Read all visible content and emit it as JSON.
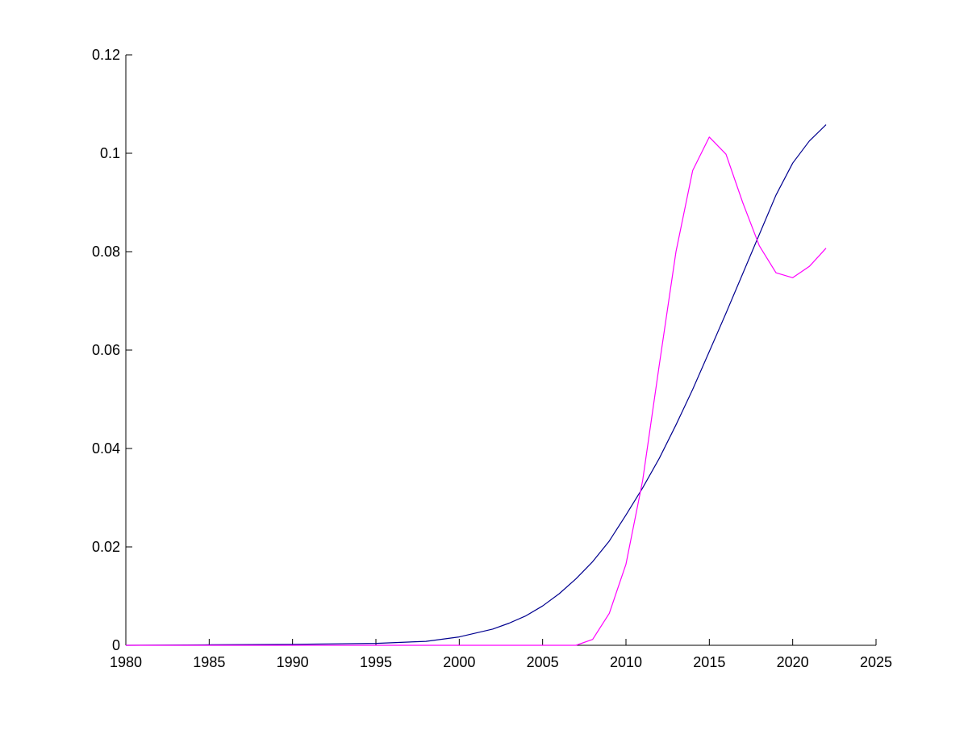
{
  "chart_data": {
    "type": "line",
    "title": "",
    "xlabel": "",
    "ylabel": "",
    "xlim": [
      1980,
      2025
    ],
    "ylim": [
      0,
      0.12
    ],
    "xticks": [
      1980,
      1985,
      1990,
      1995,
      2000,
      2005,
      2010,
      2015,
      2020,
      2025
    ],
    "xtick_labels": [
      "1980",
      "1985",
      "1990",
      "1995",
      "2000",
      "2005",
      "2010",
      "2015",
      "2020",
      "2025"
    ],
    "yticks": [
      0,
      0.02,
      0.04,
      0.06,
      0.08,
      0.1,
      0.12
    ],
    "ytick_labels": [
      "0",
      "0.02",
      "0.04",
      "0.06",
      "0.08",
      "0.1",
      "0.12"
    ],
    "grid": false,
    "legend": "none",
    "series": [
      {
        "color": "#00008f",
        "x": [
          1980,
          1985,
          1990,
          1995,
          1998,
          2000,
          2002,
          2003,
          2004,
          2005,
          2006,
          2007,
          2008,
          2009,
          2010,
          2011,
          2012,
          2013,
          2014,
          2015,
          2016,
          2017,
          2018,
          2019,
          2020,
          2021,
          2022
        ],
        "y": [
          0.0,
          0.0001,
          0.0002,
          0.0004,
          0.0008,
          0.0017,
          0.0033,
          0.0045,
          0.006,
          0.008,
          0.0105,
          0.0135,
          0.017,
          0.0212,
          0.0265,
          0.032,
          0.038,
          0.0448,
          0.052,
          0.0597,
          0.0675,
          0.0755,
          0.0835,
          0.0915,
          0.098,
          0.1025,
          0.1058
        ]
      },
      {
        "color": "#ff00ff",
        "x": [
          1980,
          2007,
          2008,
          2009,
          2010,
          2011,
          2012,
          2013,
          2014,
          2015,
          2016,
          2017,
          2018,
          2019,
          2020,
          2021,
          2022
        ],
        "y": [
          0.0,
          0.0,
          0.0012,
          0.0065,
          0.0165,
          0.0335,
          0.057,
          0.08,
          0.0965,
          0.1033,
          0.0998,
          0.09,
          0.0812,
          0.0757,
          0.0747,
          0.077,
          0.0807
        ]
      }
    ]
  }
}
